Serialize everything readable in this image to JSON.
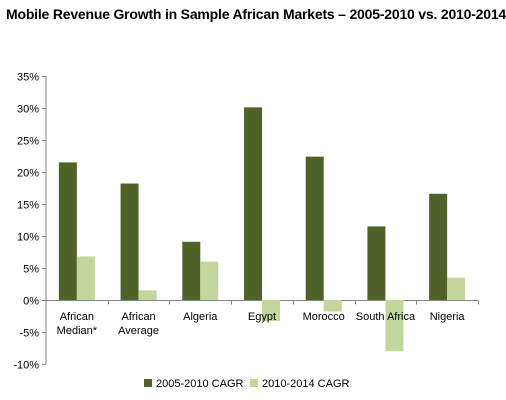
{
  "chart_data": {
    "type": "bar",
    "title": "Mobile Revenue Growth in Sample African Markets – 2005-2010 vs. 2010-2014",
    "xlabel": "",
    "ylabel": "",
    "categories": [
      [
        "African",
        "Median*"
      ],
      [
        "African",
        "Average"
      ],
      [
        "Algeria"
      ],
      [
        "Egypt"
      ],
      [
        "Morocco"
      ],
      [
        "South Africa"
      ],
      [
        "Nigeria"
      ]
    ],
    "series": [
      {
        "name": "2005-2010 CAGR",
        "color": "#4f6228",
        "values": [
          21.5,
          18.2,
          9.1,
          30.1,
          22.4,
          11.5,
          16.6
        ]
      },
      {
        "name": "2010-2014 CAGR",
        "color": "#c3d69b",
        "values": [
          6.8,
          1.5,
          6.0,
          -3.3,
          -1.8,
          -8.0,
          3.5
        ]
      }
    ],
    "ylim": [
      -10,
      35
    ],
    "yticks": [
      -10,
      -5,
      0,
      5,
      10,
      15,
      20,
      25,
      30,
      35
    ],
    "ytick_labels": [
      "-10%",
      "-5%",
      "0%",
      "5%",
      "10%",
      "15%",
      "20%",
      "25%",
      "30%",
      "35%"
    ],
    "grid": false,
    "legend_position": "bottom"
  }
}
